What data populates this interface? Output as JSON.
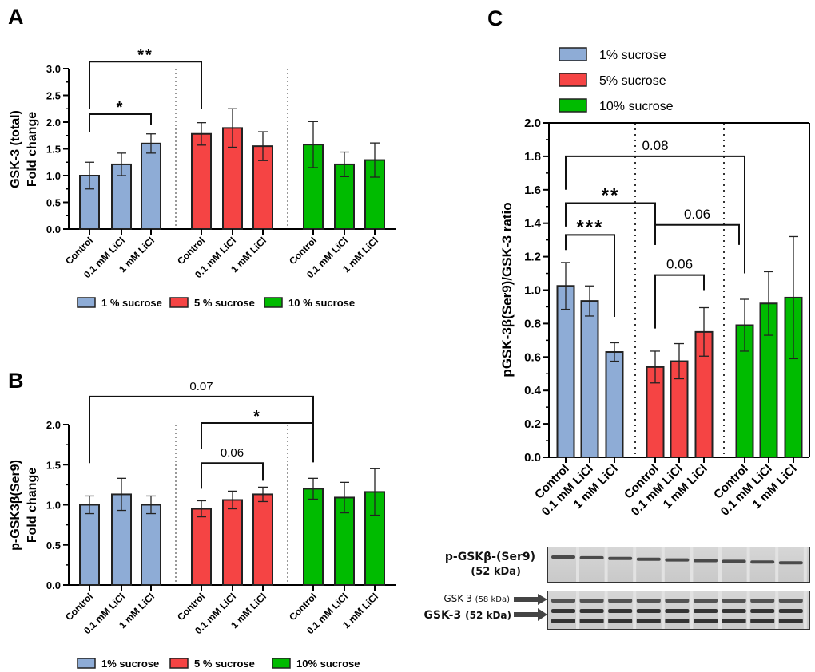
{
  "colors": {
    "group1": "#8eacd6",
    "group2": "#f54444",
    "group3": "#00bb00"
  },
  "chart_data": [
    {
      "panel": "A",
      "type": "bar",
      "ylabel": [
        "GSK-3 (total)",
        "Fold change"
      ],
      "ylim": [
        0,
        3.0
      ],
      "y_ticks": [
        "0.0",
        "0.5",
        "1.0",
        "1.5",
        "2.0",
        "2.5",
        "3.0"
      ],
      "categories": [
        "Control",
        "0.1 mM LiCl",
        "1 mM LiCl",
        "Control",
        "0.1 mM LiCl",
        "1 mM LiCl",
        "Control",
        "0.1 mM LiCl",
        "1 mM LiCl"
      ],
      "groups": [
        0,
        0,
        0,
        1,
        1,
        1,
        2,
        2,
        2
      ],
      "values": [
        1.0,
        1.21,
        1.6,
        1.78,
        1.89,
        1.55,
        1.58,
        1.21,
        1.29
      ],
      "errors": [
        0.25,
        0.21,
        0.18,
        0.21,
        0.36,
        0.27,
        0.43,
        0.23,
        0.32
      ],
      "legend": [
        "1 % sucrose",
        "5 % sucrose",
        "10 % sucrose"
      ],
      "legend_position": "bottom",
      "annotations": [
        {
          "from": 0,
          "to": 3,
          "y": 3.13,
          "left": 2.25,
          "right": 2.25,
          "label": "**"
        },
        {
          "from": 0,
          "to": 2,
          "y": 2.15,
          "left": 1.82,
          "right": 1.94,
          "label": "*"
        }
      ]
    },
    {
      "panel": "B",
      "type": "bar",
      "ylabel": [
        "p-GSK3β(Ser9)",
        "Fold change"
      ],
      "ylim": [
        0,
        2.0
      ],
      "y_ticks": [
        "0.0",
        "0.5",
        "1.0",
        "1.5",
        "2.0"
      ],
      "categories": [
        "Control",
        "0.1 mM LiCl",
        "1 mM LiCl",
        "Control",
        "0.1 mM LiCl",
        "1 mM LiCl",
        "Control",
        "0.1 mM LiCl",
        "1 mM LiCl"
      ],
      "groups": [
        0,
        0,
        0,
        1,
        1,
        1,
        2,
        2,
        2
      ],
      "values": [
        1.0,
        1.13,
        1.0,
        0.95,
        1.06,
        1.13,
        1.2,
        1.09,
        1.16
      ],
      "errors": [
        0.11,
        0.2,
        0.11,
        0.1,
        0.11,
        0.09,
        0.13,
        0.19,
        0.29
      ],
      "legend": [
        "1% sucrose",
        "5 % sucrose",
        "10% sucrose"
      ],
      "legend_position": "bottom",
      "annotations": [
        {
          "from": 0,
          "to": 6,
          "y": 2.35,
          "left": 1.52,
          "right": 1.53,
          "label": "0.07"
        },
        {
          "from": 3,
          "to": 6,
          "y": 2.02,
          "left": 1.7,
          "right": 1.53,
          "label": "*"
        },
        {
          "from": 3,
          "to": 5,
          "y": 1.52,
          "left": 1.2,
          "right": 1.3,
          "label": "0.06"
        }
      ]
    },
    {
      "panel": "C",
      "type": "bar",
      "ylabel": [
        "pGSK-3β(Ser9)/GSK-3 ratio"
      ],
      "ylim": [
        0,
        2.0
      ],
      "y_ticks": [
        "0.0",
        "0.2",
        "0.4",
        "0.6",
        "0.8",
        "1.0",
        "1.2",
        "1.4",
        "1.6",
        "1.8",
        "2.0"
      ],
      "categories": [
        "Control",
        "0.1 mM LiCl",
        "1 mM LiCl",
        "Control",
        "0.1 mM LiCl",
        "1 mM LiCl",
        "Control",
        "0.1 mM LiCl",
        "1 mM LiCl"
      ],
      "groups": [
        0,
        0,
        0,
        1,
        1,
        1,
        2,
        2,
        2
      ],
      "values": [
        1.025,
        0.935,
        0.63,
        0.54,
        0.575,
        0.75,
        0.79,
        0.92,
        0.955
      ],
      "errors": [
        0.14,
        0.09,
        0.055,
        0.095,
        0.105,
        0.145,
        0.155,
        0.19,
        0.365
      ],
      "legend": [
        "1% sucrose",
        "5% sucrose",
        "10% sucrose"
      ],
      "legend_position": "top-left",
      "annotations": [
        {
          "from": 0,
          "to": 6,
          "y": 1.8,
          "left": 1.6,
          "right": 1.1,
          "label": "0.08"
        },
        {
          "from": 0,
          "to": 3,
          "y": 1.52,
          "left": 1.38,
          "right": 1.27,
          "label": "**"
        },
        {
          "from": 0,
          "to": 2,
          "y": 1.33,
          "left": 1.24,
          "right": 0.84,
          "label": "***"
        },
        {
          "from": 3,
          "to": 6,
          "y": 1.39,
          "left": 1.27,
          "right": 1.27,
          "label": "0.06"
        },
        {
          "from": 3,
          "to": 5,
          "y": 1.09,
          "left": 0.77,
          "right": 1.0,
          "label": "0.06"
        }
      ]
    }
  ],
  "blot": {
    "row1_label": "p-GSKβ-(Ser9)",
    "row1_sub": "(52 kDa)",
    "row2_label_a": "GSK-3",
    "row2_label_a_kda": "(58 kDa)",
    "row2_label_b": "GSK-3",
    "row2_label_b_kda": "(52 kDa)"
  }
}
